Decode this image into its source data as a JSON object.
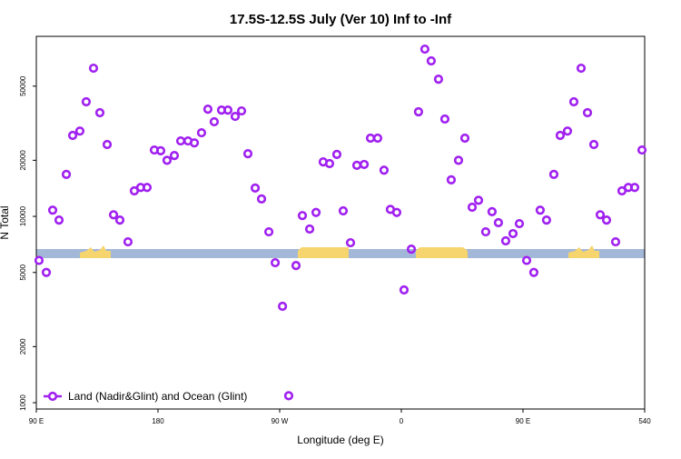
{
  "chart_data": {
    "type": "scatter",
    "title": "17.5S-12.5S July (Ver 10)   Inf to -Inf",
    "x_label": "Longitude (deg E)",
    "y_label": "N Total",
    "log_y": true,
    "legend": "lower left",
    "xlim": [
      90,
      540
    ],
    "xticks": [
      {
        "value": 90,
        "label": "90 E"
      },
      180,
      {
        "value": 270,
        "label": "90 W"
      },
      {
        "value": 360,
        "label": "0"
      },
      {
        "value": 450,
        "label": "90 E"
      },
      540
    ],
    "ylim": [
      925,
      92500
    ],
    "yticks": [
      1000,
      2000,
      5000,
      10000,
      20000,
      50000
    ],
    "series": [
      {
        "name": "Land (Nadir&Glint) and Ocean (Glint)",
        "color": "#a020f0",
        "x": [
          92.0,
          97.4,
          102.1,
          106.8,
          112.2,
          116.9,
          122.2,
          126.9,
          132.3,
          137.0,
          142.4,
          147.1,
          151.8,
          157.8,
          162.5,
          167.2,
          171.9,
          177.3,
          182.0,
          186.7,
          192.1,
          196.8,
          202.2,
          206.9,
          212.2,
          216.9,
          221.6,
          227.0,
          231.7,
          237.1,
          241.8,
          246.5,
          251.9,
          256.6,
          262.0,
          266.7,
          272.1,
          276.7,
          282.1,
          286.8,
          292.2,
          296.9,
          302.2,
          306.9,
          312.3,
          317.0,
          322.4,
          327.1,
          332.5,
          337.2,
          342.5,
          347.2,
          351.9,
          356.6,
          362.0,
          367.4,
          372.7,
          377.4,
          382.1,
          387.5,
          392.2,
          396.9,
          402.3,
          407.0,
          412.4,
          417.1,
          422.4,
          427.1,
          431.8,
          437.2,
          442.6,
          447.3,
          452.7,
          458.0,
          462.7,
          467.4,
          472.8,
          477.5,
          482.9,
          487.6,
          493.0,
          497.7,
          502.4,
          507.1,
          511.8,
          518.5,
          523.2,
          527.9,
          532.6,
          538.0
        ],
        "values": [
          5800,
          5000,
          10800,
          9550,
          16800,
          27200,
          28700,
          41200,
          62400,
          36000,
          24300,
          10200,
          9550,
          7300,
          13700,
          14300,
          14300,
          22700,
          22500,
          20000,
          21200,
          25400,
          25400,
          24800,
          28100,
          37600,
          32200,
          37200,
          37200,
          34400,
          36800,
          21700,
          14200,
          12400,
          8260,
          5640,
          3290,
          1090,
          5450,
          10100,
          8550,
          10500,
          19600,
          19200,
          21500,
          10700,
          7220,
          18800,
          19000,
          26300,
          26300,
          17700,
          10900,
          10500,
          4030,
          6670,
          36400,
          79000,
          68300,
          54500,
          33300,
          15700,
          20000,
          26300,
          11200,
          12200,
          8260,
          10600,
          9250,
          7390,
          8080,
          9140,
          5800,
          5000,
          10800,
          9550,
          16800,
          27200,
          28700,
          41200,
          62400,
          36000,
          24300,
          10200,
          9550,
          7300,
          13700,
          14300,
          14300,
          22700
        ]
      }
    ]
  }
}
